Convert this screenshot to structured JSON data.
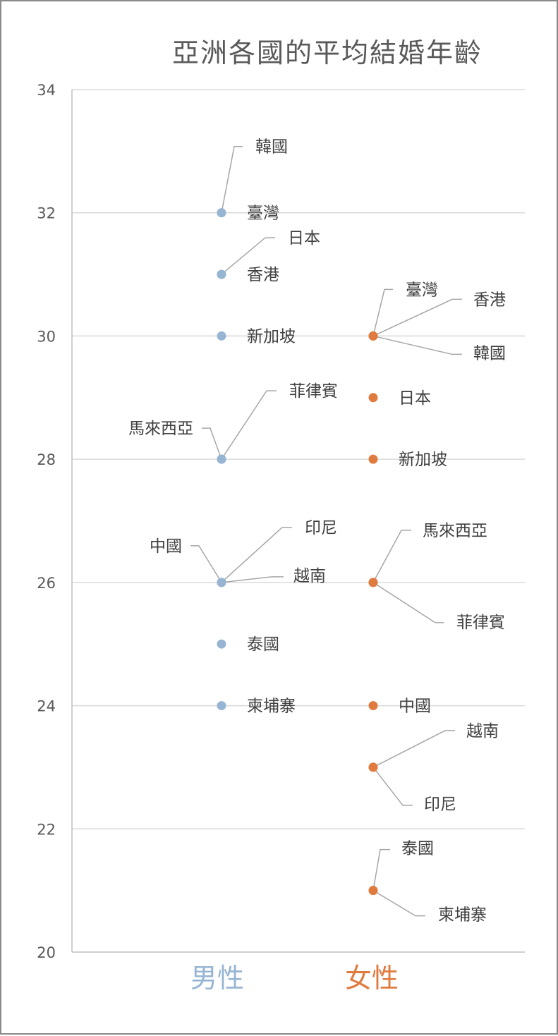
{
  "chart_data": {
    "type": "scatter",
    "title": "亞洲各國的平均結婚年齡",
    "xlabel": "",
    "ylabel": "",
    "categories": [
      "男性",
      "女性"
    ],
    "ylim": [
      20,
      34
    ],
    "yticks": [
      20,
      22,
      24,
      26,
      28,
      30,
      32,
      34
    ],
    "grid": true,
    "legend": "none",
    "series": [
      {
        "name": "男性",
        "color": "#97b5d3",
        "points": [
          {
            "label": "韓國",
            "value": 32
          },
          {
            "label": "臺灣",
            "value": 32
          },
          {
            "label": "日本",
            "value": 31
          },
          {
            "label": "香港",
            "value": 31
          },
          {
            "label": "新加坡",
            "value": 30
          },
          {
            "label": "菲律賓",
            "value": 28
          },
          {
            "label": "馬來西亞",
            "value": 28
          },
          {
            "label": "印尼",
            "value": 26
          },
          {
            "label": "中國",
            "value": 26
          },
          {
            "label": "越南",
            "value": 26
          },
          {
            "label": "泰國",
            "value": 25
          },
          {
            "label": "柬埔寨",
            "value": 24
          }
        ]
      },
      {
        "name": "女性",
        "color": "#e07b3f",
        "points": [
          {
            "label": "臺灣",
            "value": 30
          },
          {
            "label": "香港",
            "value": 30
          },
          {
            "label": "韓國",
            "value": 30
          },
          {
            "label": "日本",
            "value": 29
          },
          {
            "label": "新加坡",
            "value": 28
          },
          {
            "label": "馬來西亞",
            "value": 26
          },
          {
            "label": "菲律賓",
            "value": 26
          },
          {
            "label": "中國",
            "value": 24
          },
          {
            "label": "越南",
            "value": 23
          },
          {
            "label": "印尼",
            "value": 23
          },
          {
            "label": "泰國",
            "value": 21
          },
          {
            "label": "柬埔寨",
            "value": 21
          }
        ]
      }
    ]
  }
}
